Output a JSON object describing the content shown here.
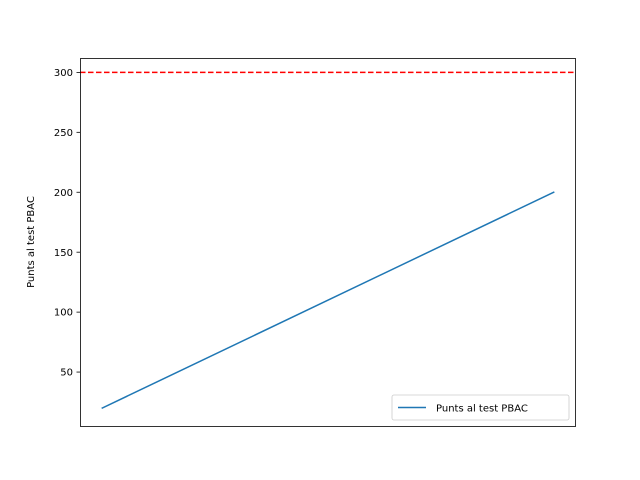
{
  "chart_data": {
    "type": "line",
    "title": "",
    "xlabel": "",
    "ylabel": "Punts al test PBAC",
    "xticks": "hidden",
    "ylim": [
      5,
      312
    ],
    "yticks": [
      50,
      100,
      150,
      200,
      250,
      300
    ],
    "grid": false,
    "legend_location": "lower-right",
    "series": [
      {
        "name": "Punts al test PBAC",
        "color": "#1f77b4",
        "x": [
          0,
          1
        ],
        "values": [
          20,
          200
        ]
      }
    ],
    "reference_lines": [
      {
        "y": 300,
        "color": "#ff0000",
        "style": "dashed"
      }
    ]
  }
}
